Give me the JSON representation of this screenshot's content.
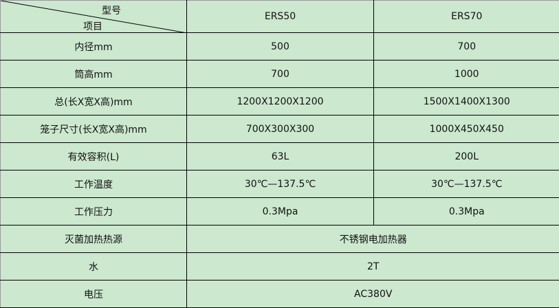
{
  "header": {
    "model_label": "型号",
    "item_label": "项目",
    "models": [
      "ERS50",
      "ERS70"
    ]
  },
  "rows": [
    {
      "label": "内径mm",
      "values": [
        "500",
        "700"
      ]
    },
    {
      "label": "筒高mm",
      "values": [
        "700",
        "1000"
      ]
    },
    {
      "label": "总(长X宽X高)mm",
      "values": [
        "1200X1200X1200",
        "1500X1400X1300"
      ]
    },
    {
      "label": "笼子尺寸(长X宽X高)mm",
      "values": [
        "700X300X300",
        "1000X450X450"
      ]
    },
    {
      "label": "有效容积(L)",
      "values": [
        "63L",
        "200L"
      ]
    },
    {
      "label": "工作温度",
      "values": [
        "30℃—137.5℃",
        "30℃—137.5℃"
      ]
    },
    {
      "label": "工作压力",
      "values": [
        "0.3Mpa",
        "0.3Mpa"
      ]
    }
  ],
  "merged_rows": [
    {
      "label": "灭菌加热热源",
      "value": "不锈钢电加热器"
    },
    {
      "label": "水",
      "value": "2T"
    },
    {
      "label": "电压",
      "value": "AC380V"
    }
  ],
  "colors": {
    "background": "#cce8cf",
    "border": "#000000"
  }
}
